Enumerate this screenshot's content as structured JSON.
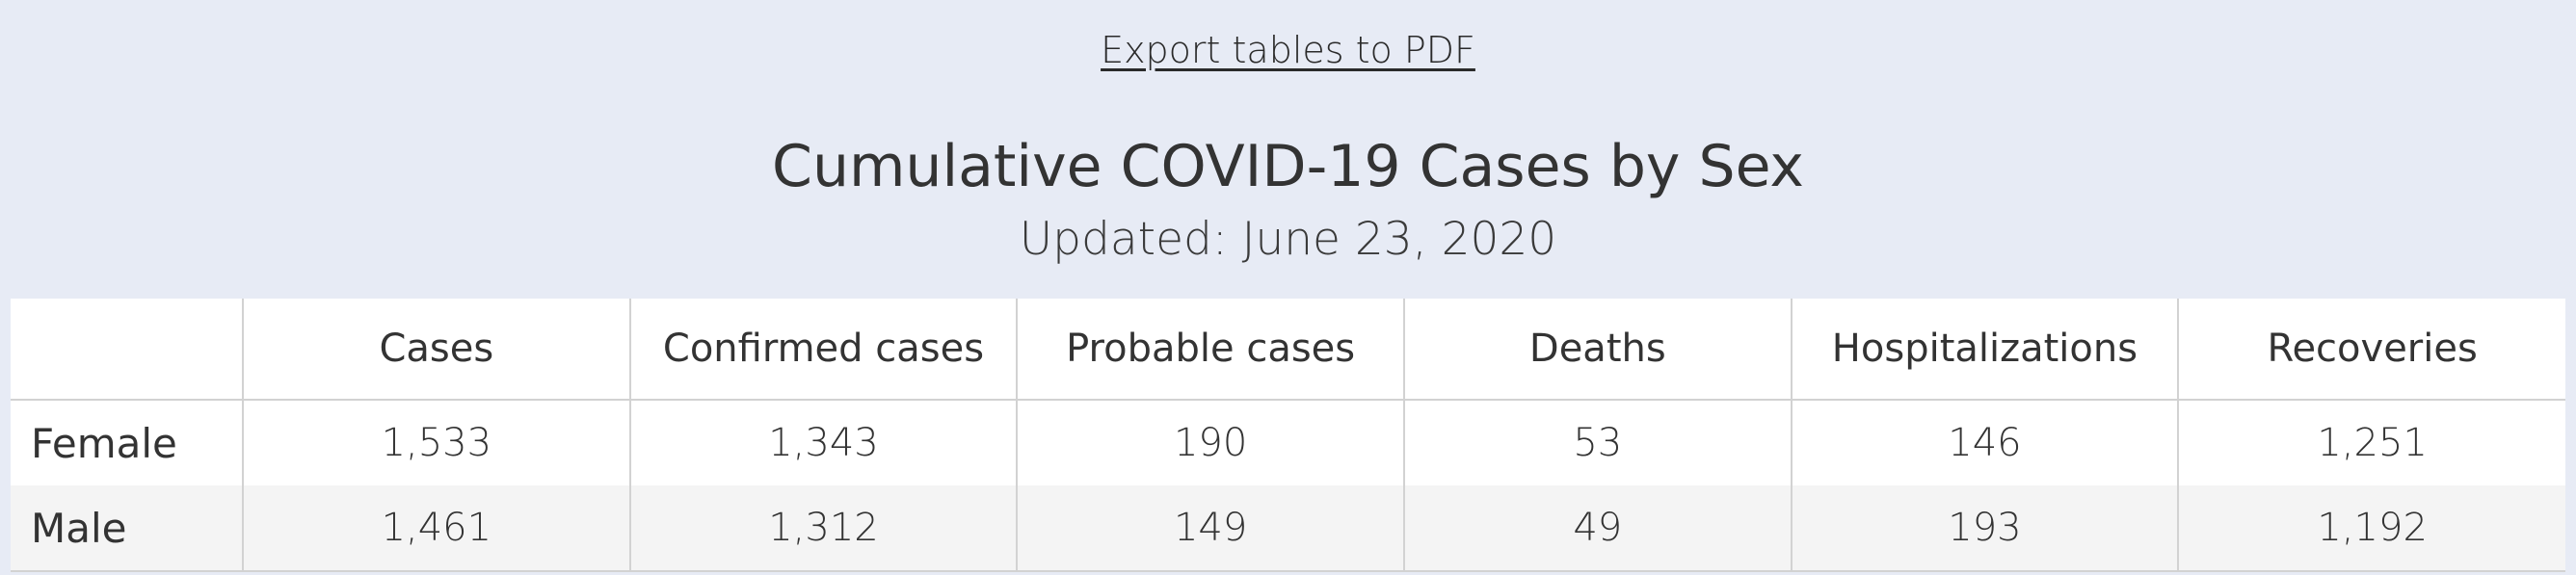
{
  "export_link": "Export tables to PDF",
  "title": "Cumulative COVID-19 Cases by Sex",
  "subtitle": "Updated: June 23, 2020",
  "table": {
    "columns": [
      "Cases",
      "Confirmed cases",
      "Probable cases",
      "Deaths",
      "Hospitalizations",
      "Recoveries"
    ],
    "rows": [
      {
        "label": "Female",
        "values": [
          "1,533",
          "1,343",
          "190",
          "53",
          "146",
          "1,251"
        ]
      },
      {
        "label": "Male",
        "values": [
          "1,461",
          "1,312",
          "149",
          "49",
          "193",
          "1,192"
        ]
      }
    ]
  },
  "colors": {
    "background": "#e7ebf5",
    "table_background": "#ffffff",
    "alt_row": "#f4f4f4",
    "grid": "#d2d2d2",
    "text": "#333333"
  }
}
